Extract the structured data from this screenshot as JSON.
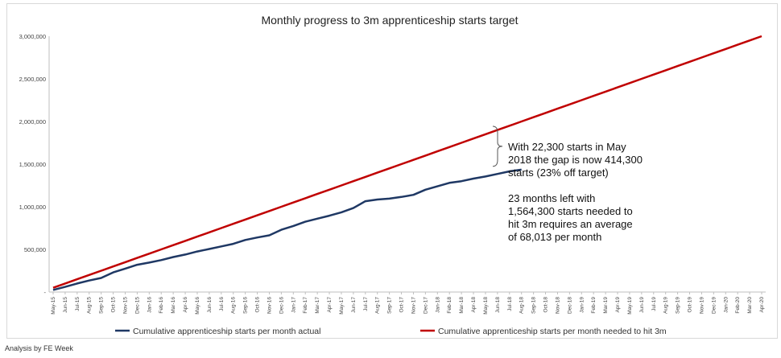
{
  "chart_data": {
    "type": "line",
    "title": "Monthly progress to 3m apprenticeship starts target",
    "ylim": [
      0,
      3000000
    ],
    "y_ticks": [
      "-",
      "500,000",
      "1,000,000",
      "1,500,000",
      "2,000,000",
      "2,500,000",
      "3,000,000"
    ],
    "x_labels": [
      "May-15",
      "Jun-15",
      "Jul-15",
      "Aug-15",
      "Sep-15",
      "Oct-15",
      "Nov-15",
      "Dec-15",
      "Jan-16",
      "Feb-16",
      "Mar-16",
      "Apr-16",
      "May-16",
      "Jun-16",
      "Jul-16",
      "Aug-16",
      "Sep-16",
      "Oct-16",
      "Nov-16",
      "Dec-16",
      "Jan-17",
      "Feb-17",
      "Mar-17",
      "Apr-17",
      "May-17",
      "Jun-17",
      "Jul-17",
      "Aug-17",
      "Sep-17",
      "Oct-17",
      "Nov-17",
      "Dec-17",
      "Jan-18",
      "Feb-18",
      "Mar-18",
      "Apr-18",
      "May-18",
      "Jun-18",
      "Jul-18",
      "Aug-18",
      "Sep-18",
      "Oct-18",
      "Nov-18",
      "Dec-18",
      "Jan-19",
      "Feb-19",
      "Mar-19",
      "Apr-19",
      "May-19",
      "Jun-19",
      "Jul-19",
      "Aug-19",
      "Sep-19",
      "Oct-19",
      "Nov-19",
      "Dec-19",
      "Jan-20",
      "Feb-20",
      "Mar-20",
      "Apr-20"
    ],
    "series": [
      {
        "name": "Cumulative apprenticeship starts per month actual",
        "color": "#1f3864",
        "values": [
          25000,
          60000,
          100000,
          135000,
          165000,
          230000,
          275000,
          320000,
          345000,
          375000,
          410000,
          440000,
          475000,
          505000,
          535000,
          565000,
          610000,
          640000,
          665000,
          730000,
          775000,
          825000,
          860000,
          895000,
          935000,
          985000,
          1065000,
          1085000,
          1095000,
          1115000,
          1140000,
          1200000,
          1240000,
          1280000,
          1300000,
          1330000,
          1355000,
          1385000,
          1415000,
          1436000
        ]
      },
      {
        "name": "Cumulative apprenticeship starts per month needed to hit 3m",
        "color": "#c00000",
        "values": [
          50000,
          100000,
          150000,
          200000,
          250000,
          300000,
          350000,
          400000,
          450000,
          500000,
          550000,
          600000,
          650000,
          700000,
          750000,
          800000,
          850000,
          900000,
          950000,
          1000000,
          1050000,
          1100000,
          1150000,
          1200000,
          1250000,
          1300000,
          1350000,
          1400000,
          1450000,
          1500000,
          1550000,
          1600000,
          1650000,
          1700000,
          1750000,
          1800000,
          1850000,
          1900000,
          1950000,
          2000000,
          2050000,
          2100000,
          2150000,
          2200000,
          2250000,
          2300000,
          2350000,
          2400000,
          2450000,
          2500000,
          2550000,
          2600000,
          2650000,
          2700000,
          2750000,
          2800000,
          2850000,
          2900000,
          2950000,
          3000000
        ]
      }
    ],
    "annotations": [
      [
        "With 22,300 starts in May",
        "2018 the gap is now 414,300",
        "starts (23% off target)"
      ],
      [
        "23 months left with",
        "1,564,300 starts needed to",
        "hit 3m requires an average",
        "of 68,013 per month"
      ]
    ],
    "legend_position": "bottom",
    "grid": false
  },
  "credit": "Analysis by FE Week"
}
